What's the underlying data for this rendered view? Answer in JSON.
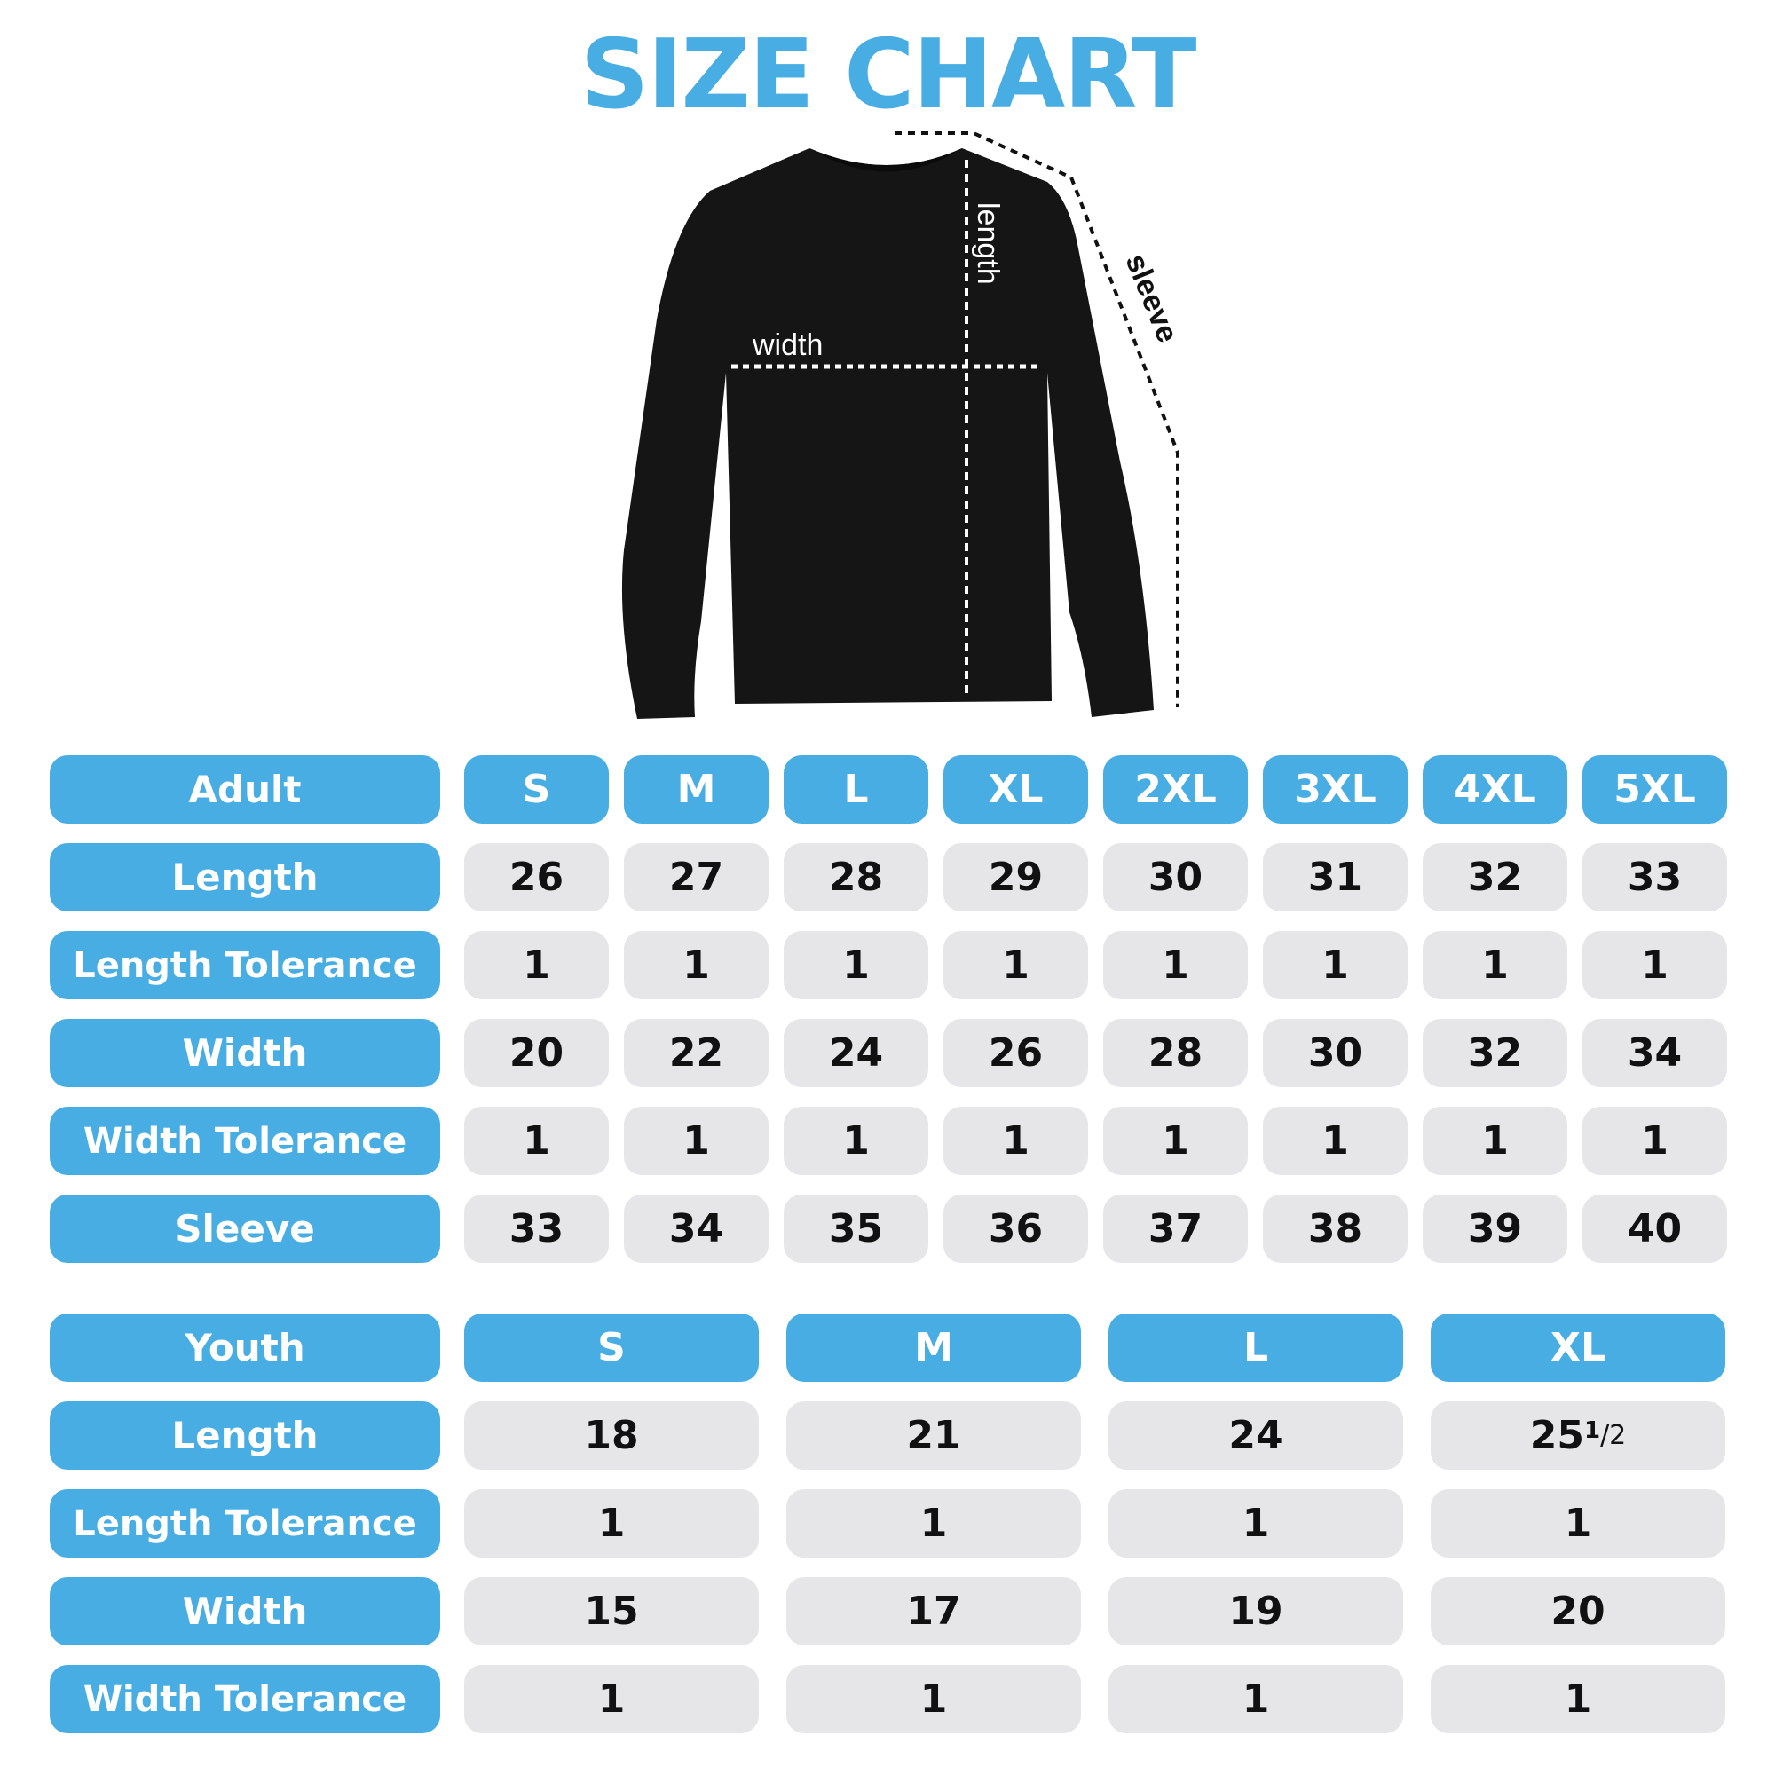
{
  "title": "SIZE CHART",
  "colors": {
    "accent": "#47ADE2",
    "cell": "#E6E6E8",
    "garment": "#151515"
  },
  "diagram_labels": {
    "width": "width",
    "length": "length",
    "sleeve": "sleeve"
  },
  "adult": {
    "header": "Adult",
    "sizes": [
      "S",
      "M",
      "L",
      "XL",
      "2XL",
      "3XL",
      "4XL",
      "5XL"
    ],
    "rows": [
      {
        "label": "Length",
        "values": [
          "26",
          "27",
          "28",
          "29",
          "30",
          "31",
          "32",
          "33"
        ]
      },
      {
        "label": "Length Tolerance",
        "values": [
          "1",
          "1",
          "1",
          "1",
          "1",
          "1",
          "1",
          "1"
        ]
      },
      {
        "label": "Width",
        "values": [
          "20",
          "22",
          "24",
          "26",
          "28",
          "30",
          "32",
          "34"
        ]
      },
      {
        "label": "Width Tolerance",
        "values": [
          "1",
          "1",
          "1",
          "1",
          "1",
          "1",
          "1",
          "1"
        ]
      },
      {
        "label": "Sleeve",
        "values": [
          "33",
          "34",
          "35",
          "36",
          "37",
          "38",
          "39",
          "40"
        ]
      }
    ]
  },
  "youth": {
    "header": "Youth",
    "sizes": [
      "S",
      "M",
      "L",
      "XL"
    ],
    "rows": [
      {
        "label": "Length",
        "values": [
          "18",
          "21",
          "24",
          "25 1/2"
        ]
      },
      {
        "label": "Length Tolerance",
        "values": [
          "1",
          "1",
          "1",
          "1"
        ]
      },
      {
        "label": "Width",
        "values": [
          "15",
          "17",
          "19",
          "20"
        ]
      },
      {
        "label": "Width Tolerance",
        "values": [
          "1",
          "1",
          "1",
          "1"
        ]
      }
    ]
  }
}
